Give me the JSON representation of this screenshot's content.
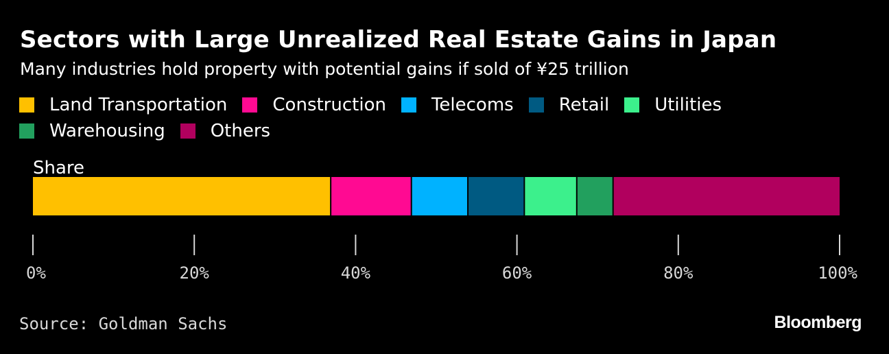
{
  "title": "Sectors with Large Unrealized Real Estate Gains in Japan",
  "subtitle": "Many industries hold property with potential gains if sold of ¥25 trillion",
  "source": "Source: Goldman Sachs",
  "logo": "Bloomberg",
  "chart_data": {
    "type": "bar",
    "orientation": "horizontal-stacked",
    "categories": [
      "Share"
    ],
    "category_label": "Share",
    "series": [
      {
        "name": "Land Transportation",
        "color": "#FFC000",
        "values": [
          37
        ]
      },
      {
        "name": "Construction",
        "color": "#FF0A92",
        "values": [
          10
        ]
      },
      {
        "name": "Telecoms",
        "color": "#00B2FF",
        "values": [
          7
        ]
      },
      {
        "name": "Retail",
        "color": "#005A82",
        "values": [
          7
        ]
      },
      {
        "name": "Utilities",
        "color": "#3CF08C",
        "values": [
          6.5
        ]
      },
      {
        "name": "Warehousing",
        "color": "#22A05E",
        "values": [
          4.5
        ]
      },
      {
        "name": "Others",
        "color": "#B1005E",
        "values": [
          28
        ]
      }
    ],
    "xlim": [
      0,
      100
    ],
    "x_ticks": [
      "0%",
      "20%",
      "40%",
      "60%",
      "80%",
      "100%"
    ],
    "x_tick_values": [
      0,
      20,
      40,
      60,
      80,
      100
    ],
    "legend_position": "top",
    "grid": false
  }
}
